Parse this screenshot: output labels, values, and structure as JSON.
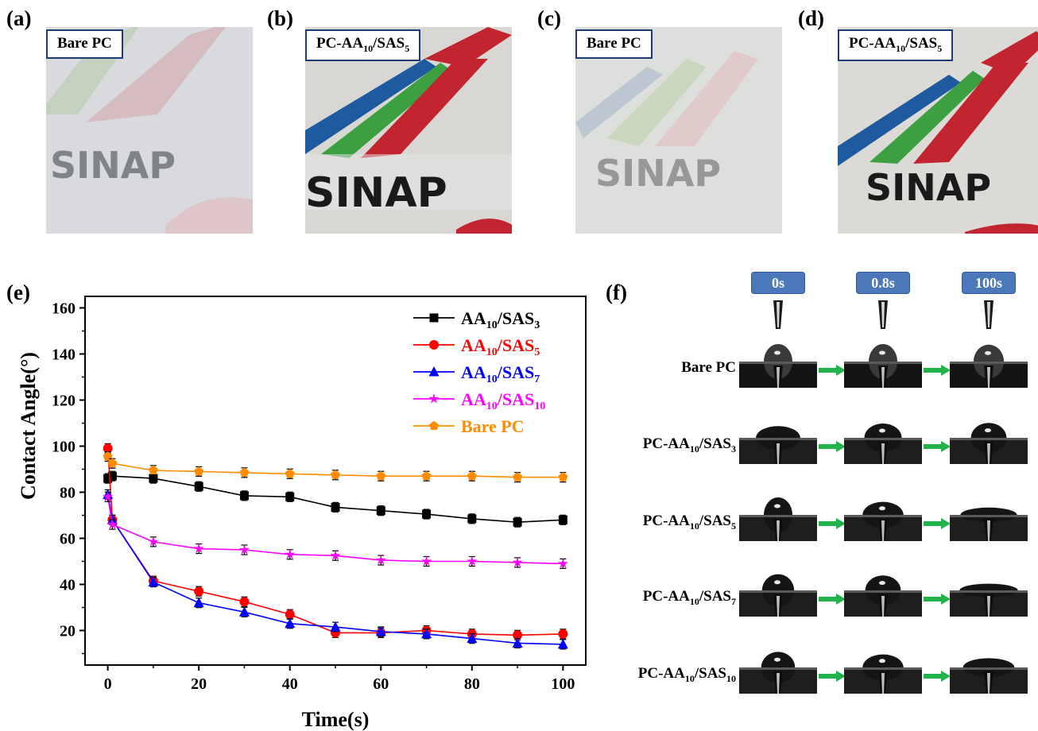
{
  "panels": {
    "a": {
      "letter": "(a)",
      "label": "Bare PC"
    },
    "b": {
      "letter": "(b)",
      "label_prefix": "PC-AA",
      "label_sub1": "10",
      "label_mid": "/SAS",
      "label_sub2": "5"
    },
    "c": {
      "letter": "(c)",
      "label": "Bare PC"
    },
    "d": {
      "letter": "(d)",
      "label_prefix": "PC-AA",
      "label_sub1": "10",
      "label_mid": "/SAS",
      "label_sub2": "5"
    },
    "e": {
      "letter": "(e)"
    },
    "f": {
      "letter": "(f)"
    }
  },
  "photo_text": "SINAP",
  "chart_data": {
    "type": "line",
    "xlabel": "Time(s)",
    "ylabel": "Contact Angle(°)",
    "xlim": [
      -5,
      105
    ],
    "ylim": [
      5,
      165
    ],
    "xticks": [
      0,
      20,
      40,
      60,
      80,
      100
    ],
    "yticks": [
      20,
      40,
      60,
      80,
      100,
      120,
      140,
      160
    ],
    "legend_position": "top-right",
    "grid": false,
    "series": [
      {
        "name": "AA10/SAS3",
        "label_main": "AA",
        "sub1": "10",
        "label_mid": "/SAS",
        "sub2": "3",
        "color": "#000000",
        "marker": "square",
        "x": [
          0,
          1,
          10,
          20,
          30,
          40,
          50,
          60,
          70,
          80,
          90,
          100
        ],
        "y": [
          86,
          87,
          86,
          82.5,
          78.5,
          78,
          73.5,
          72,
          70.5,
          68.5,
          67,
          68
        ]
      },
      {
        "name": "AA10/SAS5",
        "label_main": "AA",
        "sub1": "10",
        "label_mid": "/SAS",
        "sub2": "5",
        "color": "#ff0000",
        "marker": "circle",
        "x": [
          0,
          1,
          10,
          20,
          30,
          40,
          50,
          60,
          70,
          80,
          90,
          100
        ],
        "y": [
          99,
          68,
          41.5,
          37,
          32.5,
          27,
          19,
          19,
          20,
          18.5,
          18,
          18.5
        ]
      },
      {
        "name": "AA10/SAS7",
        "label_main": "AA",
        "sub1": "10",
        "label_mid": "/SAS",
        "sub2": "7",
        "color": "#0000ff",
        "marker": "triangle",
        "x": [
          0,
          1,
          10,
          20,
          30,
          40,
          50,
          60,
          70,
          80,
          90,
          100
        ],
        "y": [
          79,
          68,
          41,
          32,
          28,
          23,
          21.5,
          19.5,
          18.5,
          16.5,
          14.5,
          14
        ]
      },
      {
        "name": "AA10/SAS10",
        "label_main": "AA",
        "sub1": "10",
        "label_mid": "/SAS",
        "sub2": "10",
        "color": "#ff00ff",
        "marker": "star",
        "x": [
          0,
          1,
          10,
          20,
          30,
          40,
          50,
          60,
          70,
          80,
          90,
          100
        ],
        "y": [
          78,
          66,
          58.5,
          55.5,
          55,
          53,
          52.5,
          50.5,
          50,
          50,
          49.5,
          49
        ]
      },
      {
        "name": "Bare PC",
        "label_main": "Bare PC",
        "sub1": "",
        "label_mid": "",
        "sub2": "",
        "color": "#ff8c00",
        "marker": "pentagon",
        "x": [
          0,
          1,
          10,
          20,
          30,
          40,
          50,
          60,
          70,
          80,
          90,
          100
        ],
        "y": [
          95.5,
          92.5,
          89.5,
          89,
          88.5,
          88,
          87.5,
          87,
          87,
          87,
          86.5,
          86.5
        ]
      }
    ]
  },
  "panel_f": {
    "times": [
      "0s",
      "0.8s",
      "100s"
    ],
    "rows": [
      {
        "prefix": "",
        "main": "Bare PC",
        "sub1": "",
        "mid": "",
        "sub2": "",
        "drops": [
          1.0,
          1.0,
          0.95
        ]
      },
      {
        "prefix": "PC-",
        "main": "AA",
        "sub1": "10",
        "mid": "/SAS",
        "sub2": "3",
        "drops": [
          0.55,
          0.75,
          0.8
        ]
      },
      {
        "prefix": "PC-",
        "main": "AA",
        "sub1": "10",
        "mid": "/SAS",
        "sub2": "5",
        "drops": [
          1.0,
          0.65,
          0.2
        ]
      },
      {
        "prefix": "PC-",
        "main": "AA",
        "sub1": "10",
        "mid": "/SAS",
        "sub2": "7",
        "drops": [
          0.9,
          0.8,
          0.15
        ]
      },
      {
        "prefix": "PC-",
        "main": "AA",
        "sub1": "10",
        "mid": "/SAS",
        "sub2": "10",
        "drops": [
          0.85,
          0.65,
          0.35
        ]
      }
    ]
  }
}
